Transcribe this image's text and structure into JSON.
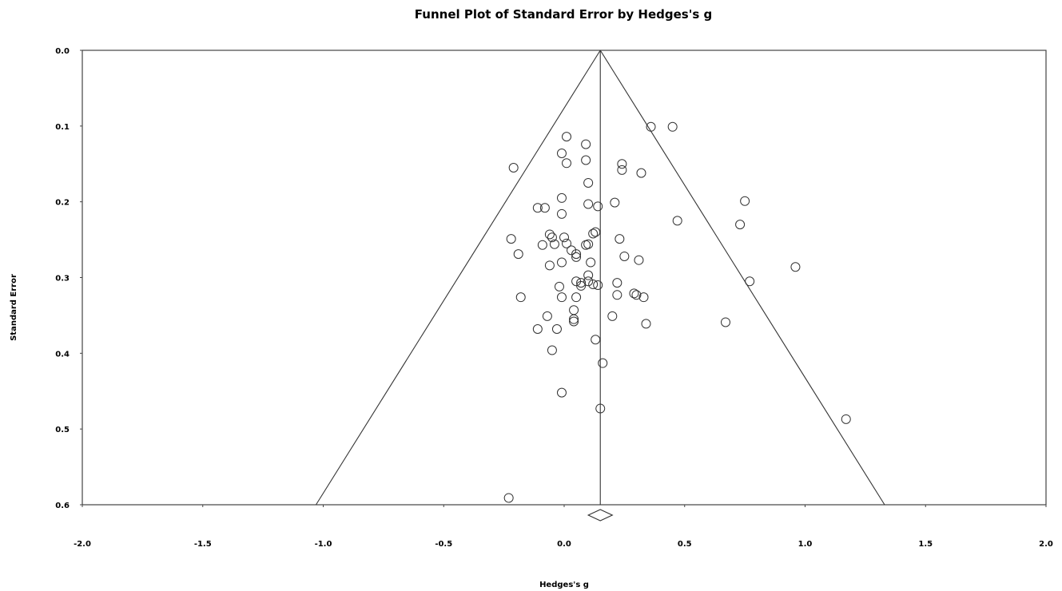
{
  "chart_data": {
    "type": "scatter",
    "title": "Funnel Plot of Standard Error by Hedges's g",
    "xlabel": "Hedges's g",
    "ylabel": "Standard Error",
    "xlim": [
      -2.0,
      2.0
    ],
    "ylim": [
      0.0,
      0.6
    ],
    "y_inverted": true,
    "grid": false,
    "x_ticks": [
      "-2.0",
      "-1.5",
      "-1.0",
      "-0.5",
      "0.0",
      "0.5",
      "1.0",
      "1.5",
      "2.0"
    ],
    "y_ticks": [
      "0.0",
      "0.1",
      "0.2",
      "0.3",
      "0.4",
      "0.5",
      "0.6"
    ],
    "pooled_effect": 0.15,
    "funnel": {
      "apex_se": 0.0,
      "base_se": 0.6,
      "left_x_at_base": -1.03,
      "right_x_at_base": 1.33
    },
    "summary_diamond": {
      "center": 0.15,
      "lower": 0.1,
      "upper": 0.2
    },
    "points": [
      [
        0.36,
        0.101
      ],
      [
        0.45,
        0.101
      ],
      [
        0.01,
        0.114
      ],
      [
        0.09,
        0.124
      ],
      [
        -0.01,
        0.136
      ],
      [
        0.01,
        0.149
      ],
      [
        0.09,
        0.145
      ],
      [
        -0.21,
        0.155
      ],
      [
        0.24,
        0.15
      ],
      [
        0.24,
        0.158
      ],
      [
        0.32,
        0.162
      ],
      [
        0.1,
        0.175
      ],
      [
        -0.01,
        0.195
      ],
      [
        0.75,
        0.199
      ],
      [
        0.21,
        0.201
      ],
      [
        0.1,
        0.203
      ],
      [
        0.14,
        0.206
      ],
      [
        -0.11,
        0.208
      ],
      [
        -0.08,
        0.208
      ],
      [
        -0.01,
        0.216
      ],
      [
        0.47,
        0.225
      ],
      [
        0.73,
        0.23
      ],
      [
        0.13,
        0.24
      ],
      [
        0.12,
        0.242
      ],
      [
        -0.06,
        0.243
      ],
      [
        -0.05,
        0.247
      ],
      [
        0.0,
        0.247
      ],
      [
        -0.22,
        0.249
      ],
      [
        0.23,
        0.249
      ],
      [
        0.01,
        0.255
      ],
      [
        -0.09,
        0.257
      ],
      [
        -0.04,
        0.256
      ],
      [
        0.1,
        0.256
      ],
      [
        0.09,
        0.257
      ],
      [
        0.03,
        0.264
      ],
      [
        -0.19,
        0.269
      ],
      [
        0.05,
        0.269
      ],
      [
        0.05,
        0.273
      ],
      [
        0.25,
        0.272
      ],
      [
        0.31,
        0.277
      ],
      [
        0.11,
        0.28
      ],
      [
        -0.01,
        0.28
      ],
      [
        0.96,
        0.286
      ],
      [
        -0.06,
        0.284
      ],
      [
        0.1,
        0.297
      ],
      [
        0.77,
        0.305
      ],
      [
        0.05,
        0.305
      ],
      [
        0.1,
        0.305
      ],
      [
        0.22,
        0.307
      ],
      [
        0.07,
        0.307
      ],
      [
        0.07,
        0.311
      ],
      [
        0.14,
        0.31
      ],
      [
        0.12,
        0.309
      ],
      [
        -0.02,
        0.312
      ],
      [
        0.29,
        0.321
      ],
      [
        0.3,
        0.323
      ],
      [
        0.22,
        0.323
      ],
      [
        0.33,
        0.326
      ],
      [
        -0.01,
        0.326
      ],
      [
        0.05,
        0.326
      ],
      [
        -0.18,
        0.326
      ],
      [
        0.04,
        0.343
      ],
      [
        0.2,
        0.351
      ],
      [
        -0.07,
        0.351
      ],
      [
        0.04,
        0.355
      ],
      [
        0.04,
        0.358
      ],
      [
        0.67,
        0.359
      ],
      [
        0.34,
        0.361
      ],
      [
        -0.11,
        0.368
      ],
      [
        -0.03,
        0.368
      ],
      [
        0.13,
        0.382
      ],
      [
        -0.05,
        0.396
      ],
      [
        0.16,
        0.413
      ],
      [
        -0.01,
        0.452
      ],
      [
        0.15,
        0.473
      ],
      [
        1.17,
        0.487
      ],
      [
        -0.23,
        0.591
      ]
    ]
  }
}
